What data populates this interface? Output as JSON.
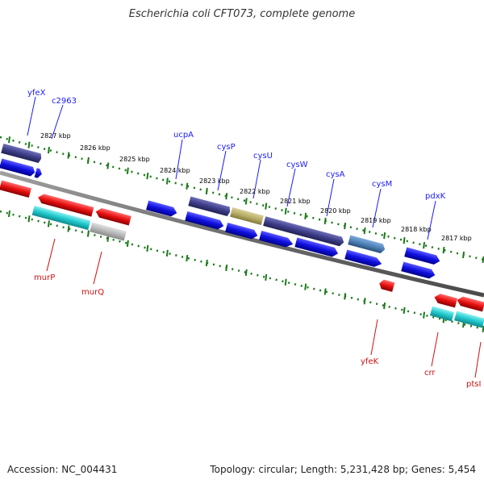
{
  "title": "Escherichia coli CFT073, complete genome",
  "footer": {
    "accession": "Accession: NC_004431",
    "topology": "Topology: circular; Length: 5,231,428 bp; Genes: 5,454"
  },
  "scale_labels": [
    "2827 kbp",
    "2826 kbp",
    "2825 kbp",
    "2824 kbp",
    "2823 kbp",
    "2822 kbp",
    "2821 kbp",
    "2820 kbp",
    "2819 kbp",
    "2818 kbp",
    "2817 kbp"
  ],
  "genes_forward": [
    "yfeX",
    "c2963",
    "ucpA",
    "cysP",
    "cysU",
    "cysW",
    "cysA",
    "cysM",
    "pdxK"
  ],
  "genes_reverse": [
    "murP",
    "murQ",
    "yfeK",
    "crr",
    "ptsI"
  ],
  "colors": {
    "forward_gene": "#1010e0",
    "reverse_gene": "#e01010",
    "forward_label": "#1a1aff",
    "reverse_label": "#d01010",
    "scale_ticks": "#1a7a1a",
    "backbone": "#7a7a7a",
    "cds_slate": "#3e3e8a",
    "cds_olive": "#b8ae68",
    "cds_steel": "#4f82b8",
    "cds_cyan": "#20c8cc",
    "cds_grey": "#b8b8b8"
  }
}
